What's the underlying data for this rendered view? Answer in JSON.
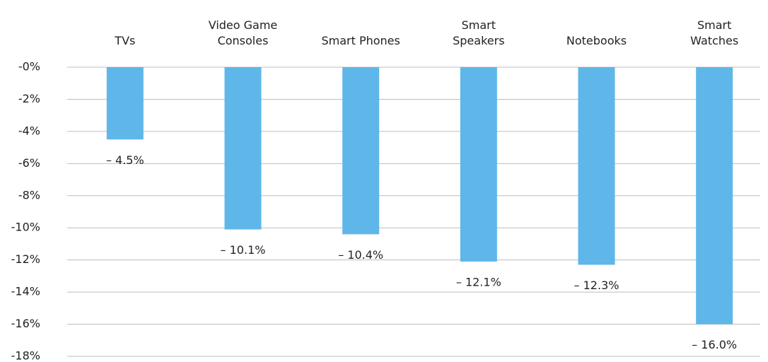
{
  "chart_data": {
    "type": "bar",
    "categories": [
      "TVs",
      "Video Game\nConsoles",
      "Smart Phones",
      "Smart\nSpeakers",
      "Notebooks",
      "Smart\nWatches"
    ],
    "values": [
      -4.5,
      -10.1,
      -10.4,
      -12.1,
      -12.3,
      -16.0
    ],
    "value_labels": [
      "– 4.5%",
      "– 10.1%",
      "– 10.4%",
      "– 12.1%",
      "– 12.3%",
      "– 16.0%"
    ],
    "color": "#5eb7e8",
    "ylim": [
      0,
      -18
    ],
    "yticks": [
      {
        "value": 0,
        "label": "-0%"
      },
      {
        "value": -2,
        "label": "-2%"
      },
      {
        "value": -4,
        "label": "-4%"
      },
      {
        "value": -6,
        "label": "-6%"
      },
      {
        "value": -8,
        "label": "-8%"
      },
      {
        "value": -10,
        "label": "-10%"
      },
      {
        "value": -12,
        "label": "-12%"
      },
      {
        "value": -14,
        "label": "-14%"
      },
      {
        "value": -16,
        "label": "-16%"
      },
      {
        "value": -18,
        "label": "-18%"
      }
    ],
    "grid": true
  }
}
